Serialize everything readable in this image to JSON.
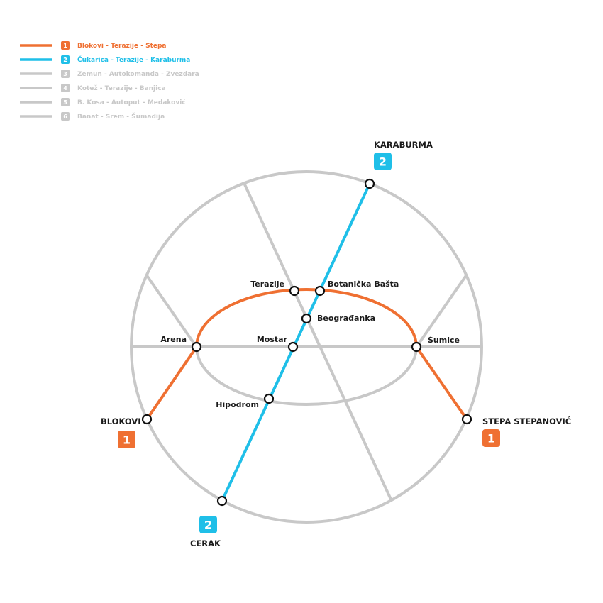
{
  "colors": {
    "line1": "#ef7032",
    "line2": "#1fbfe8",
    "inactive": "#c8c8c8",
    "station_fill": "#ffffff",
    "station_stroke": "#111111",
    "text": "#1a1a1a"
  },
  "legend": [
    {
      "number": "1",
      "label": "Blokovi - Terazije - Stepa",
      "active": true,
      "color": "#ef7032"
    },
    {
      "number": "2",
      "label": "Čukarica - Terazije - Karaburma",
      "active": true,
      "color": "#1fbfe8"
    },
    {
      "number": "3",
      "label": "Zemun - Autokomanda - Zvezdara",
      "active": false,
      "color": "#c8c8c8"
    },
    {
      "number": "4",
      "label": "Kotež - Terazije - Banjica",
      "active": false,
      "color": "#c8c8c8"
    },
    {
      "number": "5",
      "label": "B. Kosa - Autoput - Medaković",
      "active": false,
      "color": "#c8c8c8"
    },
    {
      "number": "6",
      "label": "Banat - Srem - Šumadija",
      "active": false,
      "color": "#c8c8c8"
    }
  ],
  "stations": {
    "terazije": "Terazije",
    "botanicka_basta": "Botanička Bašta",
    "beogradjanka": "Beograđanka",
    "arena": "Arena",
    "mostar": "Mostar",
    "sumice": "Šumice",
    "hipodrom": "Hipodrom"
  },
  "terminals": {
    "karaburma": {
      "label": "KARABURMA",
      "line": "2"
    },
    "blokovi": {
      "label": "BLOKOVI",
      "line": "1"
    },
    "stepa": {
      "label": "STEPA STEPANOVIĆ",
      "line": "1"
    },
    "cerak": {
      "label": "CERAK",
      "line": "2"
    }
  }
}
